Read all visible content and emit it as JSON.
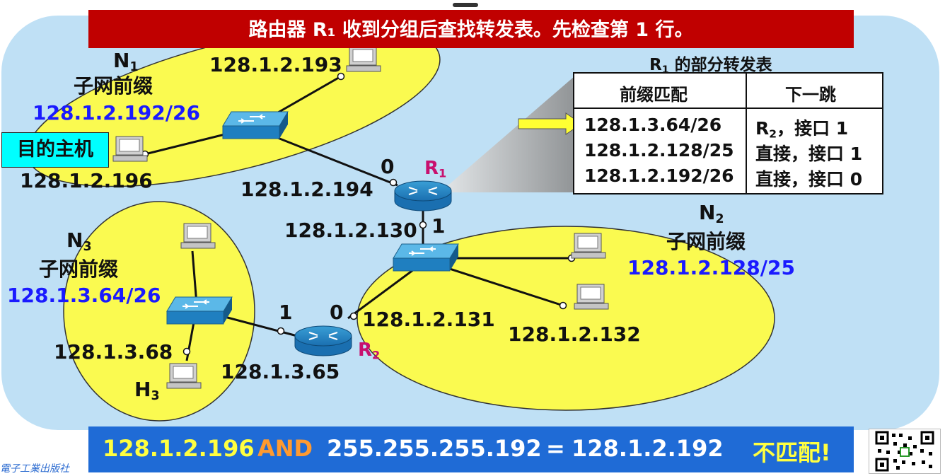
{
  "banner": "路由器 R₁ 收到分组后查找转发表。先检查第 1 行。",
  "networks": {
    "n1": {
      "name": "N",
      "sub": "1",
      "prefix_label": "子网前缀",
      "prefix": "128.1.2.192/26"
    },
    "n2": {
      "name": "N",
      "sub": "2",
      "prefix_label": "子网前缀",
      "prefix": "128.1.2.128/25"
    },
    "n3": {
      "name": "N",
      "sub": "3",
      "prefix_label": "子网前缀",
      "prefix": "128.1.3.64/26"
    }
  },
  "dest_host_label": "目的主机",
  "addresses": {
    "n1_top_host": "128.1.2.193",
    "n1_dest_host": "128.1.2.196",
    "r1_if0": "128.1.2.194",
    "r1_if1": "128.1.2.130",
    "r2_if0": "128.1.2.131",
    "n2_host": "128.1.2.132",
    "n3_host": "128.1.3.68",
    "r2_if1": "128.1.3.65"
  },
  "interfaces": {
    "r1_0": "0",
    "r1_1": "1",
    "r2_0": "0",
    "r2_1": "1"
  },
  "routers": {
    "r1": {
      "name": "R",
      "sub": "1"
    },
    "r2": {
      "name": "R",
      "sub": "2"
    }
  },
  "h3": {
    "name": "H",
    "sub": "3"
  },
  "table": {
    "title_name": "R",
    "title_sub": "1",
    "title_rest": " 的部分转发表",
    "headers": [
      "前缀匹配",
      "下一跳"
    ],
    "rows": [
      {
        "prefix": "128.1.3.64/26",
        "hop_name": "R",
        "hop_sub": "2",
        "hop_rest": "，接口 1"
      },
      {
        "prefix": "128.1.2.128/25",
        "hop_name": "",
        "hop_sub": "",
        "hop_rest": "直接，接口 1"
      },
      {
        "prefix": "128.1.2.192/26",
        "hop_name": "",
        "hop_sub": "",
        "hop_rest": "直接，接口 0"
      }
    ]
  },
  "bottom": {
    "ip": "128.1.2.196",
    "op": "AND",
    "mask": "255.255.255.192",
    "eq": "=",
    "result": "128.1.2.192",
    "verdict": "不匹配!"
  },
  "watermark": "電子工業出版社",
  "colors": {
    "background_panel": "#bfe0f5",
    "subnet_ellipse": "#fafa50",
    "banner": "#c00000",
    "bottom_bar": "#1f6bd6",
    "prefix_text": "#1a1aff",
    "router_label": "#c8106e",
    "arrow": "#ffff33",
    "underline": "#e00000",
    "dest_box": "#00ffff",
    "and_text": "#ff9a30",
    "ip_text": "#ffff40",
    "verdict_text": "#ffff40"
  }
}
